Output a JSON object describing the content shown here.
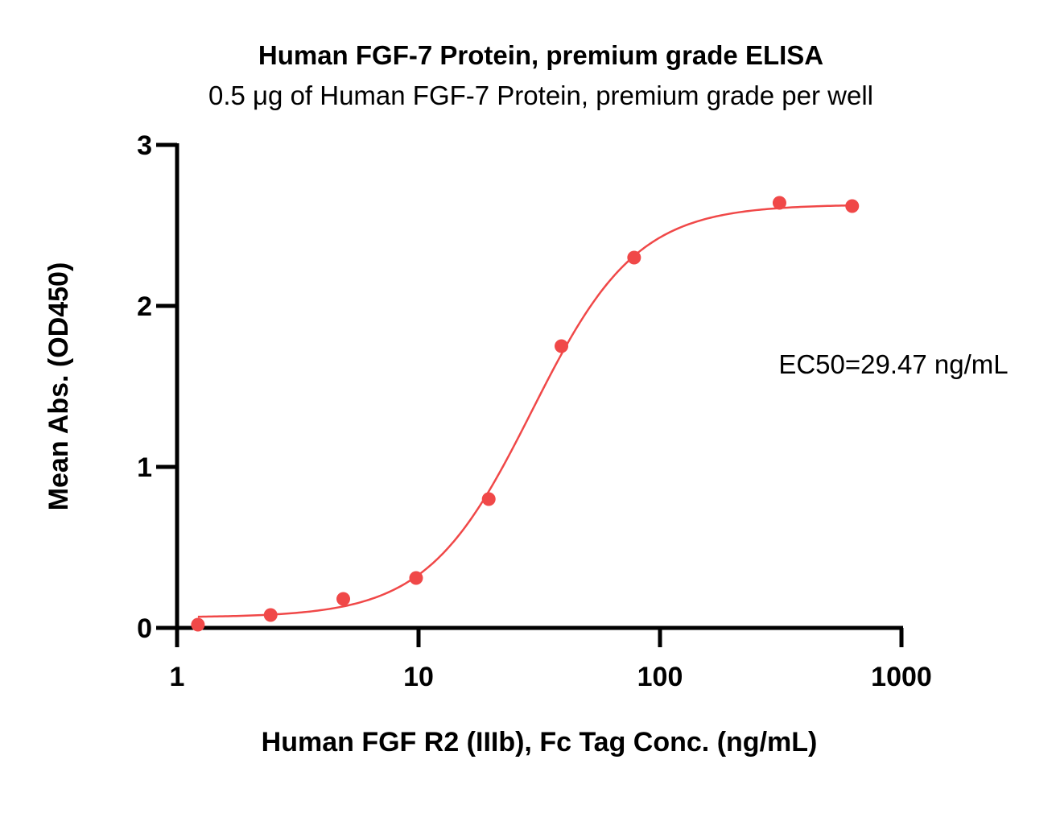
{
  "chart_data": {
    "type": "scatter",
    "title": "Human FGF-7 Protein, premium grade ELISA",
    "subtitle": "0.5 μg of Human FGF-7 Protein, premium grade per well",
    "xlabel": "Human FGF R2 (IIIb), Fc Tag Conc. (ng/mL)",
    "ylabel": "Mean Abs. (OD450)",
    "xscale": "log",
    "xlim": [
      1,
      1000
    ],
    "ylim": [
      0,
      3
    ],
    "xticks": [
      "1",
      "10",
      "100",
      "1000"
    ],
    "yticks": [
      "0",
      "1",
      "2",
      "3"
    ],
    "grid": false,
    "legend": "none",
    "annotation": "EC50=29.47 ng/mL",
    "color": "#f04848",
    "series": [
      {
        "x": [
          1.22,
          2.44,
          4.88,
          9.77,
          19.53,
          39.06,
          78.13,
          312.5,
          625
        ],
        "y": [
          0.02,
          0.08,
          0.18,
          0.31,
          0.8,
          1.75,
          2.3,
          2.64,
          2.62
        ]
      }
    ],
    "fit": {
      "model": "4PL",
      "bottom": 0.065,
      "top": 2.63,
      "ec50": 29.47,
      "hill": 2.0
    }
  }
}
